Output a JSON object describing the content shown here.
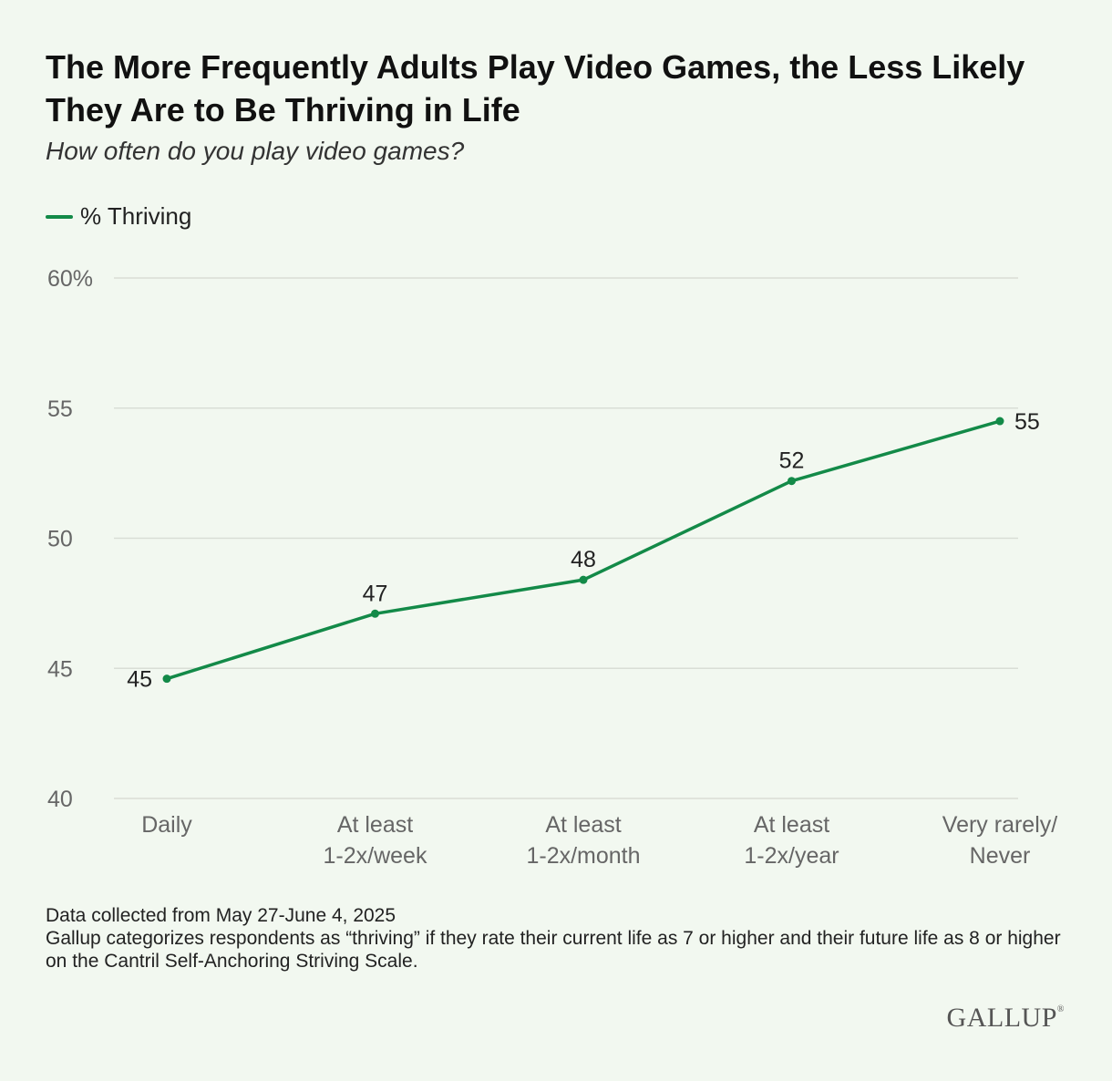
{
  "chart_data": {
    "type": "line",
    "title": "The More Frequently Adults Play Video Games, the Less Likely They Are to Be Thriving in Life",
    "subtitle": "How often do you play video games?",
    "categories": [
      [
        "Daily"
      ],
      [
        "At least",
        "1-2x/week"
      ],
      [
        "At least",
        "1-2x/month"
      ],
      [
        "At least",
        "1-2x/year"
      ],
      [
        "Very rarely/",
        "Never"
      ]
    ],
    "series": [
      {
        "name": "% Thriving",
        "values": [
          44.6,
          47.1,
          48.4,
          52.2,
          54.5
        ],
        "labels": [
          "45",
          "47",
          "48",
          "52",
          "55"
        ],
        "color": "#138a48"
      }
    ],
    "ylim": [
      40,
      60
    ],
    "yticks": [
      {
        "value": 40,
        "label": "40"
      },
      {
        "value": 45,
        "label": "45"
      },
      {
        "value": 50,
        "label": "50"
      },
      {
        "value": 55,
        "label": "55"
      },
      {
        "value": 60,
        "label": "60%"
      }
    ],
    "xlabel": "",
    "ylabel": "",
    "grid": true,
    "legend_position": "top-left"
  },
  "footnote": {
    "line1": "Data collected from May 27-June 4, 2025",
    "line2": "Gallup categorizes respondents as “thriving” if they rate their current life as 7 or higher and their future life as 8 or higher on the Cantril Self-Anchoring Striving Scale."
  },
  "logo": {
    "text": "GALLUP",
    "mark": "®"
  },
  "colors": {
    "background": "#f2f8f0",
    "line": "#138a48",
    "grid": "#d9ded6",
    "axis_text": "#666666"
  }
}
